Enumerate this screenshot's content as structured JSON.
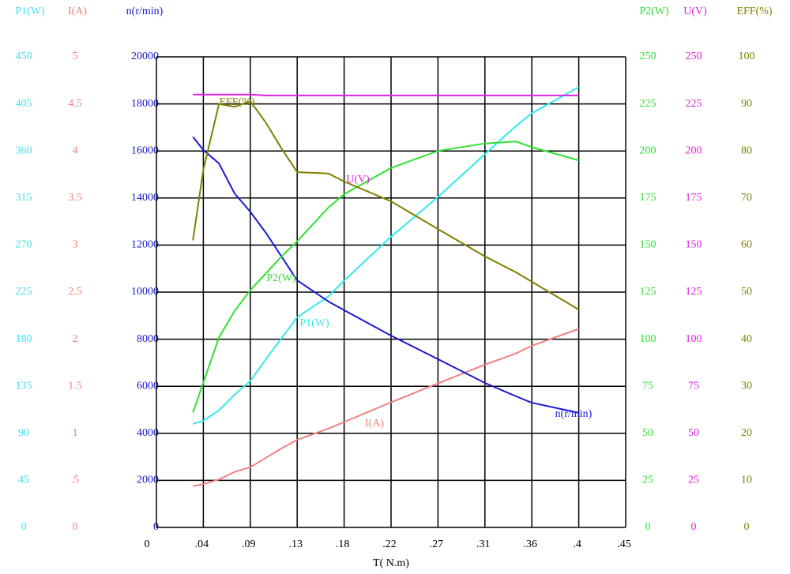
{
  "chart_data": {
    "type": "line",
    "xlabel": "T( N.m)",
    "xlim": [
      0,
      0.45
    ],
    "xticks": [
      0,
      {
        "value": 0.045,
        "label": ".04"
      },
      {
        "value": 0.09,
        "label": ".09"
      },
      {
        "value": 0.135,
        "label": ".13"
      },
      {
        "value": 0.18,
        "label": ".18"
      },
      {
        "value": 0.225,
        "label": ".22"
      },
      {
        "value": 0.27,
        "label": ".27"
      },
      {
        "value": 0.315,
        "label": ".31"
      },
      {
        "value": 0.36,
        "label": ".36"
      },
      {
        "value": 0.405,
        "label": ".4"
      },
      {
        "value": 0.45,
        "label": ".45"
      }
    ],
    "grid": true,
    "y_axes": [
      {
        "label": "P1(W)",
        "color": "#40e0f0",
        "ylim": [
          0,
          450
        ],
        "yticks": [
          0,
          45,
          90,
          135,
          180,
          225,
          270,
          315,
          360,
          405,
          450
        ]
      },
      {
        "label": "I(A)",
        "color": "#f08080",
        "ylim": [
          0,
          5
        ],
        "yticks": [
          0,
          {
            "value": 0.5,
            "label": ".5"
          },
          1,
          1.5,
          2,
          2.5,
          3,
          3.5,
          4,
          4.5,
          5
        ]
      },
      {
        "label": "n(r/min)",
        "color": "#1818c8",
        "ylim": [
          0,
          20000
        ],
        "yticks": [
          0,
          2000,
          4000,
          6000,
          8000,
          10000,
          12000,
          14000,
          16000,
          18000,
          20000
        ]
      },
      {
        "label": "P2(W)",
        "color": "#30e030",
        "ylim": [
          0,
          250
        ],
        "yticks": [
          0,
          25,
          50,
          75,
          100,
          125,
          150,
          175,
          200,
          225,
          250
        ]
      },
      {
        "label": "U(V)",
        "color": "#e020e0",
        "ylim": [
          0,
          250
        ],
        "yticks": [
          0,
          25,
          50,
          75,
          100,
          125,
          150,
          175,
          200,
          225,
          250
        ]
      },
      {
        "label": "EFF(%)",
        "color": "#808000",
        "ylim": [
          0,
          100
        ],
        "yticks": [
          0,
          10,
          20,
          30,
          40,
          50,
          60,
          70,
          80,
          90,
          100
        ]
      }
    ],
    "x": [
      0.035,
      0.045,
      0.06,
      0.075,
      0.09,
      0.105,
      0.12,
      0.135,
      0.165,
      0.18,
      0.225,
      0.27,
      0.315,
      0.345,
      0.36,
      0.405
    ],
    "series": [
      {
        "name": "P1(W)",
        "color": "#33e8f0",
        "axis": 0,
        "values": [
          99,
          102,
          112,
          127,
          140,
          161,
          181,
          201,
          221,
          236,
          278,
          316,
          357,
          384,
          396,
          421
        ]
      },
      {
        "name": "I(A)",
        "color": "#f08080",
        "axis": 1,
        "values": [
          0.44,
          0.46,
          0.51,
          0.59,
          0.64,
          0.74,
          0.84,
          0.93,
          1.05,
          1.12,
          1.33,
          1.53,
          1.73,
          1.85,
          1.93,
          2.11
        ]
      },
      {
        "name": "n(r/min)",
        "color": "#1a1ad0",
        "axis": 2,
        "values": [
          16600,
          16040,
          15470,
          14190,
          13420,
          12520,
          11510,
          10500,
          9600,
          9230,
          8150,
          7150,
          6140,
          5570,
          5300,
          4870
        ]
      },
      {
        "name": "P2(W)",
        "color": "#33e033",
        "axis": 3,
        "values": [
          61,
          77,
          101,
          115,
          126,
          135,
          144,
          152,
          170,
          177,
          191,
          200,
          204,
          205,
          202,
          195
        ]
      },
      {
        "name": "U(V)",
        "color": "#e020e0",
        "axis": 4,
        "values": [
          230,
          230,
          230,
          230,
          230,
          229.5,
          229.5,
          229.5,
          229.5,
          229.5,
          229.5,
          229.5,
          229.5,
          229.5,
          229.5,
          229.5
        ]
      },
      {
        "name": "EFF(%)",
        "color": "#808000",
        "axis": 5,
        "values": [
          61,
          76,
          90,
          89.4,
          90.6,
          86,
          80.5,
          75.5,
          75.2,
          73.5,
          69.3,
          63.4,
          57.6,
          54.2,
          52.2,
          46.3
        ]
      }
    ]
  }
}
